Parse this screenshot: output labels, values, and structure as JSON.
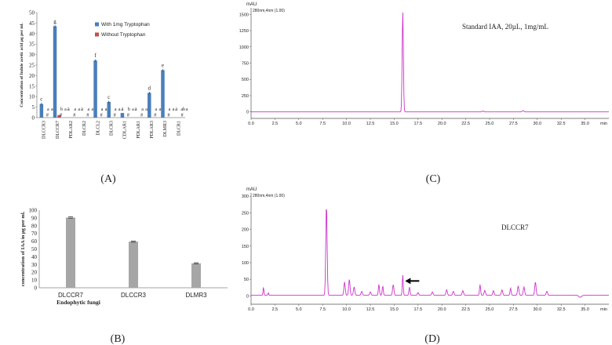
{
  "panel_labels": {
    "a": "(A)",
    "b": "(B)",
    "c": "(C)",
    "d": "(D)"
  },
  "chart_data": [
    {
      "type": "bar",
      "panel": "(A)",
      "ylabel": "Concentration of Indole acetic acid µg per ml.",
      "ylim": [
        0,
        50
      ],
      "yticks": [
        0,
        5,
        10,
        15,
        20,
        25,
        30,
        35,
        40,
        45,
        50
      ],
      "categories": [
        "DLCCR3",
        "DLCCR7",
        "PDLAR2",
        "DLCR2",
        "DLCL2",
        "DLCR3",
        "CDLAR1",
        "PDLAR1",
        "PDLAR3",
        "DLMR3",
        "DLCR1"
      ],
      "series": [
        {
          "name": "With 1mg Tryptophan",
          "color": "#4a7ebb",
          "values": [
            6.5,
            43.5,
            0,
            0,
            27.2,
            7.5,
            2.2,
            0,
            11.8,
            22.6,
            0
          ],
          "letters": [
            "c",
            "g",
            "a",
            "a",
            "f",
            "c",
            "a",
            "a",
            "d",
            "e",
            "a"
          ]
        },
        {
          "name": "Without Tryptophan",
          "color": "#c0504d",
          "values": [
            0,
            1.2,
            0,
            0,
            0,
            0,
            0,
            0,
            0,
            0,
            0
          ],
          "letters": [
            "a",
            "b",
            "a",
            "a",
            "a",
            "a",
            "b",
            "a",
            "a",
            "a",
            "ab"
          ]
        }
      ],
      "marks": [
        "#",
        "#",
        "#",
        "#",
        "#",
        "#",
        "#",
        "#",
        "#",
        "#",
        "#"
      ],
      "extra_letters": [
        "a",
        "a",
        "a",
        "a",
        "a",
        "a",
        "a",
        "a",
        "a",
        "a",
        "a"
      ],
      "legend": "top-right"
    },
    {
      "type": "bar",
      "panel": "(B)",
      "xlabel": "Endophytic  fungi",
      "ylabel": "concentration of IAA  in µg per ml.",
      "ylim": [
        0,
        100
      ],
      "yticks": [
        0,
        10,
        20,
        30,
        40,
        50,
        60,
        70,
        80,
        90,
        100
      ],
      "categories": [
        "DLCCR7",
        "DLCCR3",
        "DLMR3"
      ],
      "values": [
        90.5,
        59.5,
        31.5
      ],
      "color": "#a6a6a6"
    },
    {
      "type": "line",
      "panel": "(C)",
      "unit": "mAU",
      "trace_label": "280nm,4nm (1.00)",
      "annotation": "Standard IAA, 20µL, 1mg/mL",
      "xunit": "min",
      "xlim": [
        0,
        37.5
      ],
      "ylim": [
        -100,
        1600
      ],
      "xticks": [
        "0.0",
        "2.5",
        "5.0",
        "7.5",
        "10.0",
        "12.5",
        "15.0",
        "17.5",
        "20.0",
        "22.5",
        "25.0",
        "27.5",
        "30.0",
        "32.5",
        "35.0"
      ],
      "yticks": [
        0,
        250,
        500,
        750,
        1000,
        1250,
        1500
      ],
      "peaks": [
        {
          "x": 15.9,
          "y": 1550,
          "w": 0.09
        },
        {
          "x": 24.3,
          "y": 14,
          "w": 0.1
        },
        {
          "x": 28.5,
          "y": 20,
          "w": 0.12
        }
      ],
      "baseline": 0,
      "color": "#cc33cc"
    },
    {
      "type": "line",
      "panel": "(D)",
      "unit": "mAU",
      "trace_label": "280nm,4nm (1.00)",
      "annotation": "DLCCR7",
      "xunit": "min",
      "xlim": [
        0,
        37.5
      ],
      "ylim": [
        -25,
        310
      ],
      "xticks": [
        "0.0",
        "2.5",
        "5.0",
        "7.5",
        "10.0",
        "12.5",
        "15.0",
        "17.5",
        "20.0",
        "22.5",
        "25.0",
        "27.5",
        "30.0",
        "32.5",
        "35.0"
      ],
      "yticks": [
        0,
        50,
        100,
        150,
        200,
        250,
        300
      ],
      "peaks": [
        {
          "x": 1.3,
          "y": 25,
          "w": 0.06
        },
        {
          "x": 1.8,
          "y": 8,
          "w": 0.06
        },
        {
          "x": 7.9,
          "y": 275,
          "w": 0.1
        },
        {
          "x": 9.8,
          "y": 40,
          "w": 0.1
        },
        {
          "x": 10.3,
          "y": 48,
          "w": 0.1
        },
        {
          "x": 10.8,
          "y": 25,
          "w": 0.1
        },
        {
          "x": 11.6,
          "y": 12,
          "w": 0.1
        },
        {
          "x": 12.5,
          "y": 10,
          "w": 0.1
        },
        {
          "x": 13.4,
          "y": 33,
          "w": 0.08
        },
        {
          "x": 13.8,
          "y": 28,
          "w": 0.08
        },
        {
          "x": 14.9,
          "y": 32,
          "w": 0.1
        },
        {
          "x": 15.9,
          "y": 62,
          "w": 0.07
        },
        {
          "x": 16.6,
          "y": 25,
          "w": 0.08
        },
        {
          "x": 17.5,
          "y": 8,
          "w": 0.1
        },
        {
          "x": 19.0,
          "y": 10,
          "w": 0.1
        },
        {
          "x": 20.5,
          "y": 17,
          "w": 0.1
        },
        {
          "x": 21.2,
          "y": 12,
          "w": 0.1
        },
        {
          "x": 22.2,
          "y": 14,
          "w": 0.1
        },
        {
          "x": 24.0,
          "y": 32,
          "w": 0.08
        },
        {
          "x": 24.5,
          "y": 15,
          "w": 0.1
        },
        {
          "x": 25.4,
          "y": 14,
          "w": 0.1
        },
        {
          "x": 26.3,
          "y": 16,
          "w": 0.1
        },
        {
          "x": 27.2,
          "y": 22,
          "w": 0.08
        },
        {
          "x": 28.0,
          "y": 28,
          "w": 0.1
        },
        {
          "x": 28.6,
          "y": 25,
          "w": 0.1
        },
        {
          "x": 29.8,
          "y": 40,
          "w": 0.1
        },
        {
          "x": 31.0,
          "y": 12,
          "w": 0.1
        },
        {
          "x": 34.5,
          "y": -6,
          "w": 0.2
        }
      ],
      "baseline": 2,
      "arrow_at": 15.9,
      "color": "#cc33cc"
    }
  ]
}
